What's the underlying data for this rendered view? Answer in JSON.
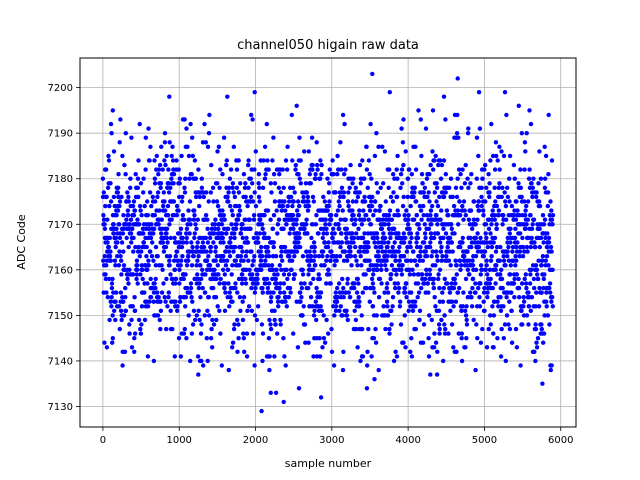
{
  "chart_data": {
    "type": "scatter",
    "title": "channel050 higain raw data",
    "xlabel": "sample number",
    "ylabel": "ADC Code",
    "xlim": [
      -300,
      6200
    ],
    "ylim": [
      7125.5,
      7206.5
    ],
    "xticks": [
      0,
      1000,
      2000,
      3000,
      4000,
      5000,
      6000
    ],
    "yticks": [
      7130,
      7140,
      7150,
      7160,
      7170,
      7180,
      7190,
      7200
    ],
    "grid": true,
    "marker_color": "#0000ff",
    "sample_count": 5900,
    "value_range": [
      7129,
      7203
    ],
    "typical_range": [
      7147,
      7184
    ],
    "outliers": [
      {
        "x": 2080,
        "y": 7129
      },
      {
        "x": 3530,
        "y": 7203
      },
      {
        "x": 4650,
        "y": 7202
      },
      {
        "x": 1990,
        "y": 7199
      },
      {
        "x": 3760,
        "y": 7199
      },
      {
        "x": 4930,
        "y": 7199
      },
      {
        "x": 5270,
        "y": 7199
      },
      {
        "x": 870,
        "y": 7198
      },
      {
        "x": 1630,
        "y": 7198
      },
      {
        "x": 4470,
        "y": 7198
      },
      {
        "x": 5450,
        "y": 7196
      },
      {
        "x": 2540,
        "y": 7196
      },
      {
        "x": 2270,
        "y": 7133
      },
      {
        "x": 2200,
        "y": 7133
      },
      {
        "x": 2370,
        "y": 7131
      },
      {
        "x": 2570,
        "y": 7134
      },
      {
        "x": 2860,
        "y": 7132
      },
      {
        "x": 3460,
        "y": 7134
      },
      {
        "x": 1250,
        "y": 7137
      },
      {
        "x": 4290,
        "y": 7137
      },
      {
        "x": 4380,
        "y": 7137
      },
      {
        "x": 5870,
        "y": 7138
      },
      {
        "x": 3560,
        "y": 7136
      },
      {
        "x": 5760,
        "y": 7135
      },
      {
        "x": 130,
        "y": 7195
      },
      {
        "x": 1050,
        "y": 7193
      },
      {
        "x": 3940,
        "y": 7193
      },
      {
        "x": 5590,
        "y": 7195
      }
    ]
  }
}
